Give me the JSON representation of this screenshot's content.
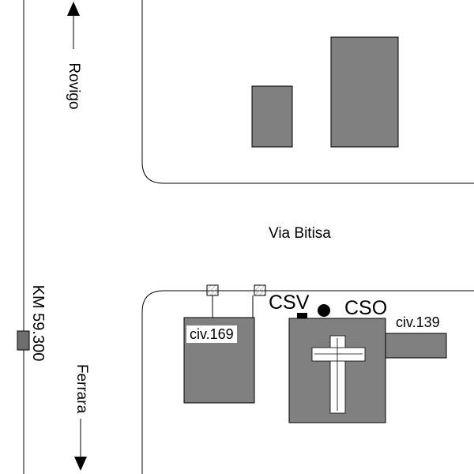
{
  "directions": {
    "north": "Rovigo",
    "south": "Ferrara"
  },
  "street": {
    "name": "Via Bitisa"
  },
  "kilometer_marker": "KM 59.300",
  "buildings": {
    "civ_169": "civ.169",
    "civ_139": "civ.139"
  },
  "points": {
    "csv": "CSV",
    "cso": "CSO"
  },
  "colors": {
    "building_fill": "#808080",
    "line": "#000000",
    "background": "#ffffff",
    "marker": "#6e6e6e"
  }
}
